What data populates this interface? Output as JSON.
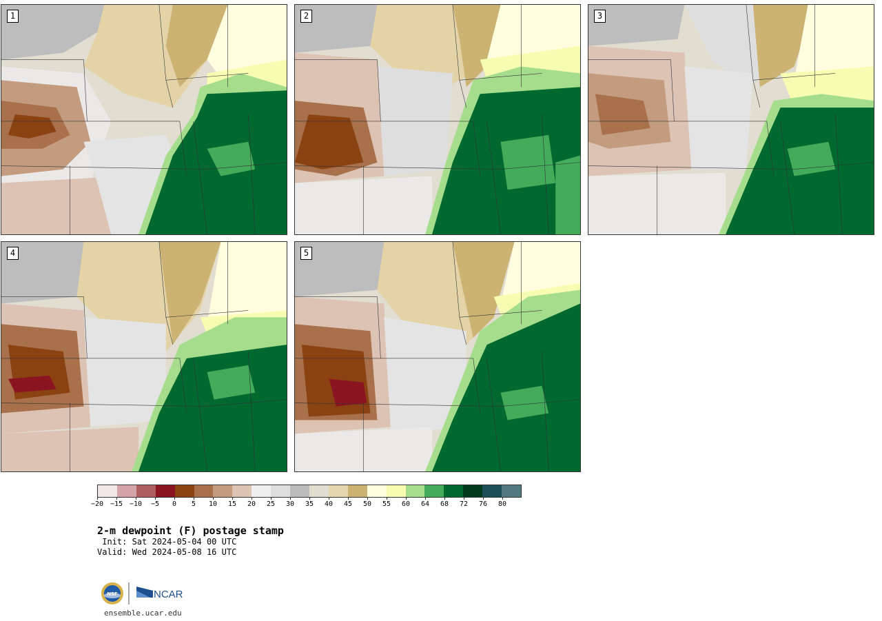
{
  "panels": [
    {
      "label": "1"
    },
    {
      "label": "2"
    },
    {
      "label": "3"
    },
    {
      "label": "4"
    },
    {
      "label": "5"
    }
  ],
  "colorbar": {
    "colors": [
      "#f3e8e8",
      "#d3a3a7",
      "#b05d62",
      "#8a1520",
      "#8a4212",
      "#a8704b",
      "#c39c80",
      "#ddc3b3",
      "#efefef",
      "#dedede",
      "#bcbcbc",
      "#e0ded0",
      "#e6d6ad",
      "#ccb374",
      "#ffffe0",
      "#f7fcb3",
      "#a6dd8c",
      "#43ab5a",
      "#00692f",
      "#003a1c",
      "#1a4f58",
      "#52797f"
    ],
    "ticks": [
      "−20",
      "−15",
      "−10",
      "−5",
      "0",
      "5",
      "10",
      "15",
      "20",
      "25",
      "30",
      "35",
      "40",
      "45",
      "50",
      "55",
      "60",
      "64",
      "68",
      "72",
      "76",
      "80"
    ]
  },
  "title": "2-m dewpoint (F) postage stamp",
  "init": " Init: Sat 2024-05-04 00 UTC",
  "valid": "Valid: Wed 2024-05-08 16 UTC",
  "logos": {
    "nsf_icon": "nsf-seal-icon",
    "ncar_logo_text": "NCAR"
  },
  "footer_url": "ensemble.ucar.edu"
}
